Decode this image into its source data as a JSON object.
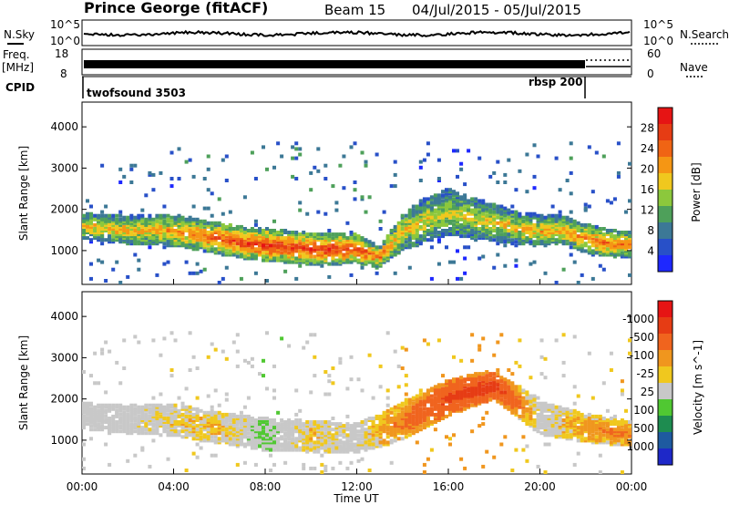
{
  "header": {
    "station": "Prince George (fitACF)",
    "beam": "Beam 15",
    "date_range": "04/Jul/2015 - 05/Jul/2015"
  },
  "strips": {
    "nsky_label": "N.Sky",
    "nsky_ticks": [
      "10^5",
      "10^0"
    ],
    "nsearch_label": "N.Search",
    "freq_label": "Freq.",
    "freq_unit": "[MHz]",
    "freq_ticks": [
      "18",
      "8"
    ],
    "nave_ticks": [
      "60",
      "0"
    ],
    "nave_label": "Nave",
    "cpid_label": "CPID",
    "cpid_segments": [
      {
        "name": "twofsound 3503",
        "start": 0,
        "end": 21.9
      },
      {
        "name": "rbsp 200",
        "start": 21.9,
        "end": 24
      }
    ]
  },
  "chart_data": [
    {
      "type": "heatmap",
      "title": "",
      "xlabel": "",
      "ylabel": "Slant Range [km]",
      "xlim": [
        0,
        24
      ],
      "ylim": [
        180,
        4600
      ],
      "yticks": [
        1000,
        2000,
        3000,
        4000
      ],
      "colorbar": {
        "label": "Power [dB]",
        "ticks": [
          "4",
          "8",
          "12",
          "16",
          "20",
          "24",
          "28"
        ],
        "colors": [
          "#1e28ff",
          "#2850c8",
          "#3c7896",
          "#4ea05a",
          "#8cc83c",
          "#f0c81e",
          "#f59614",
          "#f06414",
          "#e63c14",
          "#e61414"
        ]
      },
      "bands": [
        {
          "t": 0.0,
          "center": 1550,
          "width": 620,
          "intensity": 0.55
        },
        {
          "t": 1.0,
          "center": 1500,
          "width": 650,
          "intensity": 0.6
        },
        {
          "t": 2.0,
          "center": 1450,
          "width": 700,
          "intensity": 0.62
        },
        {
          "t": 3.0,
          "center": 1450,
          "width": 720,
          "intensity": 0.6
        },
        {
          "t": 4.0,
          "center": 1450,
          "width": 760,
          "intensity": 0.68
        },
        {
          "t": 5.0,
          "center": 1350,
          "width": 760,
          "intensity": 0.75
        },
        {
          "t": 6.0,
          "center": 1250,
          "width": 760,
          "intensity": 0.85
        },
        {
          "t": 7.0,
          "center": 1150,
          "width": 760,
          "intensity": 0.9
        },
        {
          "t": 8.0,
          "center": 1100,
          "width": 780,
          "intensity": 0.92
        },
        {
          "t": 9.0,
          "center": 1050,
          "width": 780,
          "intensity": 0.92
        },
        {
          "t": 10.0,
          "center": 1000,
          "width": 760,
          "intensity": 0.9
        },
        {
          "t": 11.0,
          "center": 1000,
          "width": 760,
          "intensity": 0.9
        },
        {
          "t": 12.0,
          "center": 1000,
          "width": 700,
          "intensity": 0.88
        },
        {
          "t": 13.0,
          "center": 800,
          "width": 500,
          "intensity": 0.8
        },
        {
          "t": 14.0,
          "center": 1400,
          "width": 900,
          "intensity": 0.6
        },
        {
          "t": 15.0,
          "center": 1700,
          "width": 1100,
          "intensity": 0.55
        },
        {
          "t": 16.0,
          "center": 1900,
          "width": 1100,
          "intensity": 0.5
        },
        {
          "t": 17.0,
          "center": 1750,
          "width": 1000,
          "intensity": 0.55
        },
        {
          "t": 18.0,
          "center": 1650,
          "width": 900,
          "intensity": 0.55
        },
        {
          "t": 19.0,
          "center": 1500,
          "width": 800,
          "intensity": 0.6
        },
        {
          "t": 20.0,
          "center": 1450,
          "width": 760,
          "intensity": 0.62
        },
        {
          "t": 21.0,
          "center": 1450,
          "width": 700,
          "intensity": 0.65
        },
        {
          "t": 22.0,
          "center": 1250,
          "width": 700,
          "intensity": 0.72
        },
        {
          "t": 23.0,
          "center": 1150,
          "width": 650,
          "intensity": 0.8
        },
        {
          "t": 24.0,
          "center": 1100,
          "width": 600,
          "intensity": 0.75
        }
      ]
    },
    {
      "type": "heatmap",
      "title": "",
      "xlabel": "Time UT",
      "ylabel": "Slant Range [km]",
      "xlim": [
        0,
        24
      ],
      "ylim": [
        180,
        4600
      ],
      "yticks": [
        1000,
        2000,
        3000,
        4000
      ],
      "xticks": [
        "00:00",
        "04:00",
        "08:00",
        "12:00",
        "16:00",
        "20:00",
        "00:00"
      ],
      "colorbar": {
        "label": "Velocity [m s^-1]",
        "ticks": [
          "1000",
          "500",
          "100",
          "25",
          "-25",
          "-100",
          "-500",
          "-1000"
        ],
        "colors": [
          "#1e28c8",
          "#1e5aa0",
          "#1e8c50",
          "#50c832",
          "#c8c8c8",
          "#f0c81e",
          "#f0961e",
          "#f0641e",
          "#e63c14",
          "#e61414"
        ]
      },
      "bands": [
        {
          "t": 0.0,
          "center": 1550,
          "width": 620,
          "velocity": 0
        },
        {
          "t": 2.0,
          "center": 1450,
          "width": 700,
          "velocity": 0
        },
        {
          "t": 4.0,
          "center": 1450,
          "width": 760,
          "velocity": -80
        },
        {
          "t": 6.0,
          "center": 1250,
          "width": 760,
          "velocity": -120
        },
        {
          "t": 8.0,
          "center": 1100,
          "width": 780,
          "velocity": 80
        },
        {
          "t": 10.0,
          "center": 1050,
          "width": 760,
          "velocity": -100
        },
        {
          "t": 12.0,
          "center": 1000,
          "width": 700,
          "velocity": 0
        },
        {
          "t": 14.0,
          "center": 1400,
          "width": 900,
          "velocity": -300
        },
        {
          "t": 16.0,
          "center": 2000,
          "width": 900,
          "velocity": -600
        },
        {
          "t": 18.0,
          "center": 2300,
          "width": 700,
          "velocity": -700
        },
        {
          "t": 20.0,
          "center": 1500,
          "width": 800,
          "velocity": 0
        },
        {
          "t": 22.0,
          "center": 1250,
          "width": 700,
          "velocity": -200
        },
        {
          "t": 24.0,
          "center": 1100,
          "width": 600,
          "velocity": -300
        }
      ]
    }
  ]
}
